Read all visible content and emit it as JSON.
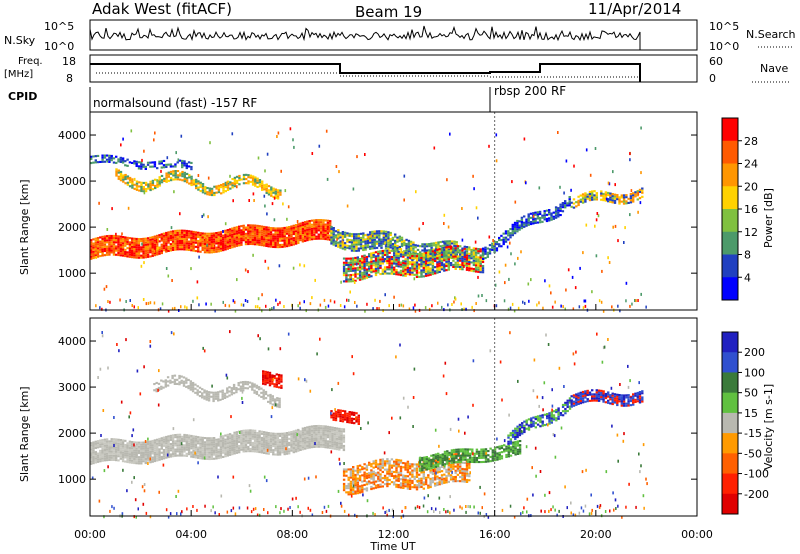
{
  "header": {
    "station": "Adak West (fitACF)",
    "beam": "Beam 19",
    "date": "11/Apr/2014"
  },
  "top_panels": {
    "nsky_label": "N.Sky",
    "nsky_ticks": [
      "10^5",
      "10^0"
    ],
    "nsearch_label": "N.Search",
    "nsearch_ticks": [
      "10^5",
      "10^0"
    ],
    "freq_label": "Freq.",
    "freq_unit": "[MHz]",
    "freq_ticks": [
      "18",
      "8"
    ],
    "nave_label": "Nave",
    "nave_ticks": [
      "60",
      "0"
    ],
    "cpid_label": "CPID",
    "cpid_segments": [
      {
        "label": "normalsound (fast) -157 RF",
        "start_hour": 0
      },
      {
        "label": "rbsp 200 RF",
        "start_hour": 16
      }
    ]
  },
  "chart_data": [
    {
      "type": "heatmap",
      "name": "power",
      "ylabel": "Slant Range [km]",
      "xlabel": "Time UT",
      "x_range": [
        0,
        24
      ],
      "y_range": [
        200,
        4500
      ],
      "y_ticks": [
        1000,
        2000,
        3000,
        4000
      ],
      "colorbar_label": "Power [dB]",
      "colorbar_ticks": [
        "28",
        "24",
        "20",
        "16",
        "12",
        "8",
        "4"
      ],
      "colorbar_colors": [
        "#ff0000",
        "#ff5a00",
        "#ff9600",
        "#ffd200",
        "#80c040",
        "#4c9a6a",
        "#2040c0",
        "#0000ff"
      ]
    },
    {
      "type": "heatmap",
      "name": "velocity",
      "ylabel": "Slant Range [km]",
      "xlabel": "Time UT",
      "x_range": [
        0,
        24
      ],
      "y_range": [
        200,
        4500
      ],
      "y_ticks": [
        1000,
        2000,
        3000,
        4000
      ],
      "colorbar_label": "Velocity [m s-1]",
      "colorbar_ticks": [
        "200",
        "100",
        "50",
        "15",
        "-15",
        "-50",
        "-100",
        "-200"
      ],
      "colorbar_colors": [
        "#2020c0",
        "#3050d0",
        "#3a7a3a",
        "#60c040",
        "#b8b8b0",
        "#ff9a00",
        "#ff6000",
        "#ff2000",
        "#e00000"
      ]
    }
  ],
  "x_axis": {
    "ticks": [
      "00:00",
      "04:00",
      "08:00",
      "12:00",
      "16:00",
      "20:00",
      "00:00"
    ],
    "label": "Time UT"
  }
}
